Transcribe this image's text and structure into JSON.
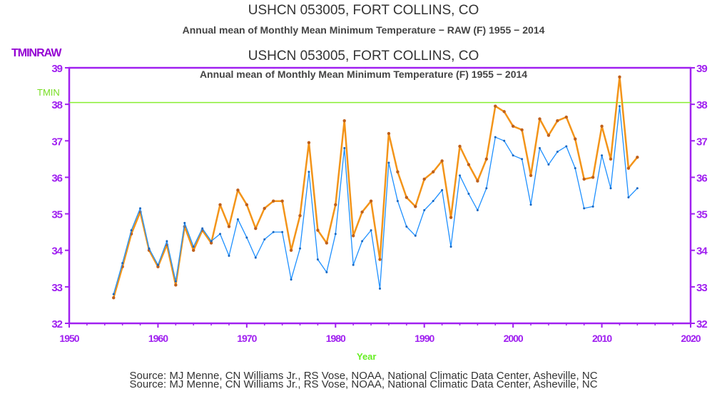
{
  "header": {
    "title": "USHCN 053005, FORT COLLINS, CO",
    "subtitle": "Annual mean of Monthly Mean Minimum Temperature − RAW (F) 1955 − 2014"
  },
  "source_line_1": "Source: MJ Menne, CN Williams Jr., RS Vose, NOAA, National Climatic Data Center, Asheville, NC",
  "source_line_2": "Source: MJ Menne, CN Williams Jr., RS Vose, NOAA, National Climatic Data Center, Asheville, NC",
  "chart_data": {
    "type": "line",
    "title": "USHCN 053005, FORT COLLINS, CO",
    "subtitle": "Annual mean of Monthly Mean Minimum Temperature (F) 1955 − 2014",
    "ylabel": "TMINRAW",
    "xlabel": "Year",
    "xlim": [
      1950,
      2020
    ],
    "ylim": [
      32,
      39
    ],
    "x_ticks": [
      "1950",
      "1960",
      "1970",
      "1980",
      "1990",
      "2000",
      "2010",
      "2020"
    ],
    "y_ticks": [
      "32",
      "33",
      "34",
      "35",
      "36",
      "37",
      "38",
      "39"
    ],
    "reference_line": {
      "label": "TMIN",
      "value": 38.05,
      "color": "#88ee33"
    },
    "grid": false,
    "x": [
      1955,
      1956,
      1957,
      1958,
      1959,
      1960,
      1961,
      1962,
      1963,
      1964,
      1965,
      1966,
      1967,
      1968,
      1969,
      1970,
      1971,
      1972,
      1973,
      1974,
      1975,
      1976,
      1977,
      1978,
      1979,
      1980,
      1981,
      1982,
      1983,
      1984,
      1985,
      1986,
      1987,
      1988,
      1989,
      1990,
      1991,
      1992,
      1993,
      1994,
      1995,
      1996,
      1997,
      1998,
      1999,
      2000,
      2001,
      2002,
      2003,
      2004,
      2005,
      2006,
      2007,
      2008,
      2009,
      2010,
      2011,
      2012,
      2013,
      2014
    ],
    "series": [
      {
        "color": "#1e90ff",
        "values": [
          32.8,
          33.65,
          34.55,
          35.15,
          34.05,
          33.6,
          34.25,
          33.15,
          34.75,
          34.1,
          34.6,
          34.25,
          34.45,
          33.85,
          34.85,
          34.35,
          33.8,
          34.3,
          34.5,
          34.5,
          33.2,
          34.05,
          36.15,
          33.75,
          33.4,
          34.45,
          36.8,
          33.6,
          34.25,
          34.55,
          32.95,
          36.4,
          35.35,
          34.65,
          34.4,
          35.1,
          35.35,
          35.65,
          34.1,
          36.05,
          35.55,
          35.1,
          35.7,
          37.1,
          37.0,
          36.6,
          36.5,
          35.25,
          36.8,
          36.35,
          36.7,
          36.85,
          36.25,
          35.15,
          35.2,
          36.6,
          35.7,
          37.95,
          35.45,
          35.7
        ]
      },
      {
        "color": "#f39419",
        "values": [
          32.7,
          33.55,
          34.45,
          35.05,
          34.0,
          33.55,
          34.15,
          33.05,
          34.65,
          34.0,
          34.55,
          34.2,
          35.25,
          34.65,
          35.65,
          35.25,
          34.6,
          35.15,
          35.35,
          35.35,
          34.0,
          34.95,
          36.95,
          34.55,
          34.2,
          35.25,
          37.55,
          34.4,
          35.05,
          35.35,
          33.75,
          37.2,
          36.15,
          35.45,
          35.2,
          35.95,
          36.15,
          36.45,
          34.9,
          36.85,
          36.35,
          35.9,
          36.5,
          37.95,
          37.8,
          37.4,
          37.3,
          36.05,
          37.6,
          37.15,
          37.55,
          37.65,
          37.05,
          35.95,
          36.0,
          37.4,
          36.5,
          38.75,
          36.25,
          36.55
        ]
      }
    ]
  }
}
